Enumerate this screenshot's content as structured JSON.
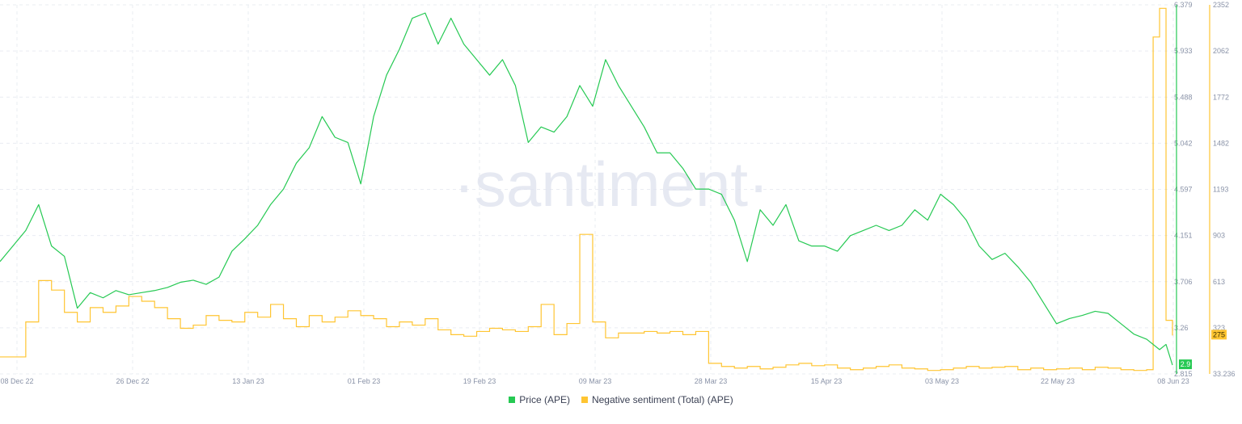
{
  "watermark": "·santiment·",
  "colors": {
    "price": "#26c953",
    "sentiment": "#ffc532",
    "grid": "#e9ecf2",
    "axis_text": "#8a93a8"
  },
  "legend": [
    {
      "label": "Price (APE)",
      "color": "#26c953"
    },
    {
      "label": "Negative sentiment (Total) (APE)",
      "color": "#ffc532"
    }
  ],
  "badges": {
    "price_current": "2.9",
    "sentiment_current": "275"
  },
  "chart_data": {
    "type": "line",
    "x_ticks": [
      "08 Dec 22",
      "26 Dec 22",
      "13 Jan 23",
      "01 Feb 23",
      "19 Feb 23",
      "09 Mar 23",
      "28 Mar 23",
      "15 Apr 23",
      "03 May 23",
      "22 May 23",
      "08 Jun 23"
    ],
    "y_left": {
      "ticks": [
        "6.379",
        "5.933",
        "5.488",
        "5.042",
        "4.597",
        "4.151",
        "3.706",
        "3.26",
        "2.815"
      ],
      "range": [
        2.815,
        6.379
      ]
    },
    "y_right": {
      "ticks": [
        "2352",
        "2062",
        "1772",
        "1482",
        "1193",
        "903",
        "613",
        "323",
        "33.236"
      ],
      "range": [
        33.236,
        2352
      ]
    },
    "x_range": [
      0,
      182
    ],
    "grid": true,
    "legend_position": "bottom-center",
    "series": [
      {
        "name": "Price (APE)",
        "axis": "left",
        "x": [
          0,
          2,
          4,
          6,
          8,
          10,
          12,
          14,
          16,
          18,
          20,
          22,
          24,
          26,
          28,
          30,
          32,
          34,
          36,
          38,
          40,
          42,
          44,
          46,
          48,
          50,
          52,
          54,
          56,
          58,
          60,
          62,
          64,
          66,
          68,
          70,
          72,
          74,
          76,
          78,
          80,
          82,
          84,
          86,
          88,
          90,
          92,
          94,
          96,
          98,
          100,
          102,
          104,
          106,
          108,
          110,
          112,
          114,
          116,
          118,
          120,
          122,
          124,
          126,
          128,
          130,
          132,
          134,
          136,
          138,
          140,
          142,
          144,
          146,
          148,
          150,
          152,
          154,
          156,
          158,
          160,
          162,
          164,
          166,
          168,
          170,
          172,
          174,
          176,
          178,
          180,
          181,
          182
        ],
        "values": [
          3.9,
          4.05,
          4.2,
          4.45,
          4.05,
          3.95,
          3.45,
          3.6,
          3.55,
          3.62,
          3.58,
          3.6,
          3.62,
          3.65,
          3.7,
          3.72,
          3.68,
          3.75,
          4.0,
          4.12,
          4.25,
          4.45,
          4.6,
          4.85,
          5.0,
          5.3,
          5.1,
          5.05,
          4.65,
          5.3,
          5.7,
          5.95,
          6.25,
          6.3,
          6.0,
          6.25,
          6.0,
          5.85,
          5.7,
          5.85,
          5.6,
          5.05,
          5.2,
          5.15,
          5.3,
          5.6,
          5.4,
          5.85,
          5.6,
          5.4,
          5.2,
          4.95,
          4.95,
          4.8,
          4.6,
          4.6,
          4.55,
          4.3,
          3.9,
          4.4,
          4.25,
          4.45,
          4.1,
          4.05,
          4.05,
          4.0,
          4.15,
          4.2,
          4.25,
          4.2,
          4.25,
          4.4,
          4.3,
          4.55,
          4.45,
          4.3,
          4.05,
          3.92,
          3.98,
          3.85,
          3.7,
          3.5,
          3.3,
          3.35,
          3.38,
          3.42,
          3.4,
          3.3,
          3.2,
          3.15,
          3.05,
          3.1,
          2.9
        ]
      },
      {
        "name": "Negative sentiment (Total) (APE)",
        "axis": "right",
        "x": [
          0,
          2,
          4,
          6,
          8,
          10,
          12,
          14,
          16,
          18,
          20,
          22,
          24,
          26,
          28,
          30,
          32,
          34,
          36,
          38,
          40,
          42,
          44,
          46,
          48,
          50,
          52,
          54,
          56,
          58,
          60,
          62,
          64,
          66,
          68,
          70,
          72,
          74,
          76,
          78,
          80,
          82,
          84,
          86,
          88,
          90,
          92,
          94,
          96,
          98,
          100,
          102,
          104,
          106,
          108,
          110,
          112,
          114,
          116,
          118,
          120,
          122,
          124,
          126,
          128,
          130,
          132,
          134,
          136,
          138,
          140,
          142,
          144,
          146,
          148,
          150,
          152,
          154,
          156,
          158,
          160,
          162,
          164,
          166,
          168,
          170,
          172,
          174,
          176,
          178,
          179,
          180,
          181,
          182
        ],
        "values": [
          140,
          140,
          360,
          620,
          560,
          420,
          360,
          450,
          420,
          460,
          520,
          490,
          450,
          380,
          320,
          340,
          400,
          370,
          360,
          420,
          390,
          470,
          380,
          330,
          400,
          360,
          390,
          430,
          400,
          380,
          330,
          360,
          340,
          380,
          310,
          280,
          270,
          300,
          320,
          310,
          300,
          330,
          470,
          280,
          350,
          910,
          360,
          260,
          290,
          290,
          300,
          290,
          300,
          280,
          300,
          100,
          80,
          70,
          80,
          65,
          75,
          90,
          100,
          85,
          90,
          70,
          60,
          70,
          80,
          90,
          70,
          65,
          55,
          60,
          70,
          80,
          70,
          75,
          80,
          60,
          70,
          60,
          65,
          70,
          60,
          75,
          70,
          60,
          55,
          60,
          2150,
          2330,
          370,
          275
        ]
      }
    ]
  }
}
